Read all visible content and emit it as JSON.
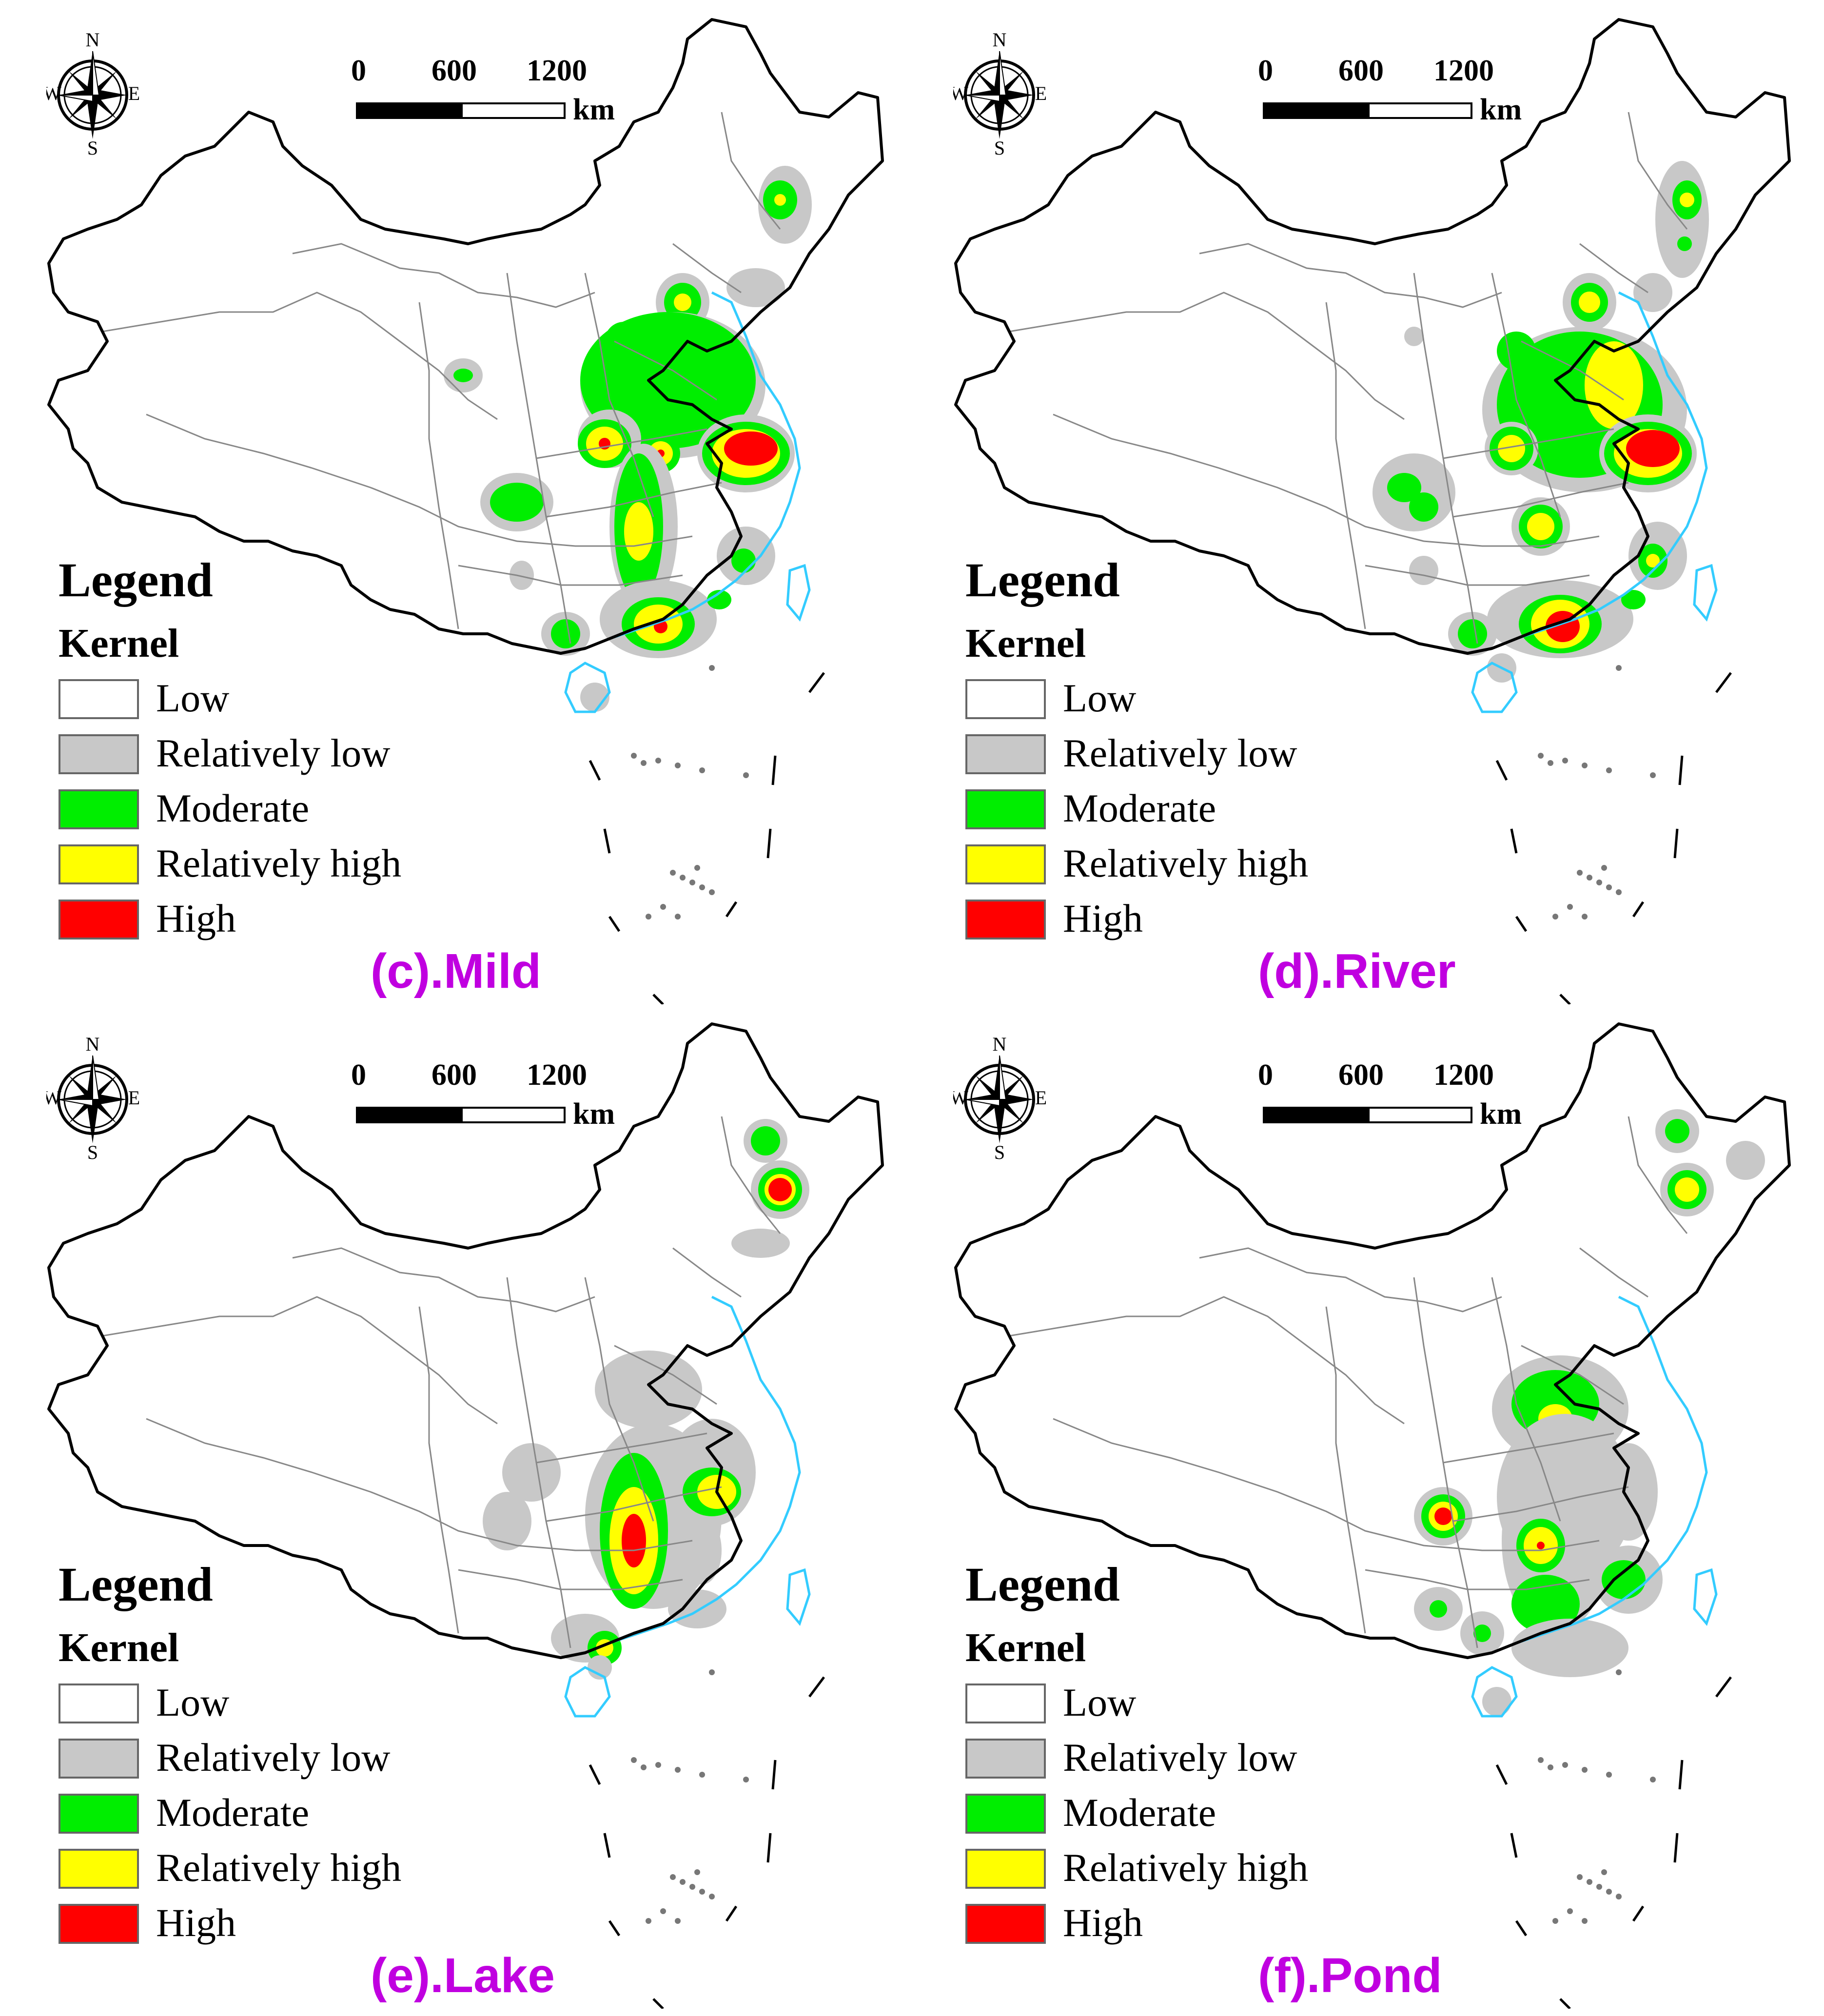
{
  "compass": {
    "n": "N",
    "s": "S",
    "e": "E",
    "w": "W"
  },
  "scalebar": {
    "ticks": [
      "0",
      "600",
      "1200"
    ],
    "unit": "km"
  },
  "legend": {
    "title": "Legend",
    "subtitle": "Kernel",
    "items": [
      {
        "label": "Low",
        "color": "#ffffff"
      },
      {
        "label": "Relatively low",
        "color": "#c8c8c8"
      },
      {
        "label": "Moderate",
        "color": "#00ee00"
      },
      {
        "label": "Relatively high",
        "color": "#ffff00"
      },
      {
        "label": "High",
        "color": "#ff0000"
      }
    ]
  },
  "colors": {
    "boundary": "#000000",
    "province_lines": "#888888",
    "coast": "#33ccff",
    "caption": "#c000e0"
  },
  "panels": [
    {
      "caption": "(c).Mild"
    },
    {
      "caption": "(d).River"
    },
    {
      "caption": "(e).Lake"
    },
    {
      "caption": "(f).Pond"
    }
  ]
}
